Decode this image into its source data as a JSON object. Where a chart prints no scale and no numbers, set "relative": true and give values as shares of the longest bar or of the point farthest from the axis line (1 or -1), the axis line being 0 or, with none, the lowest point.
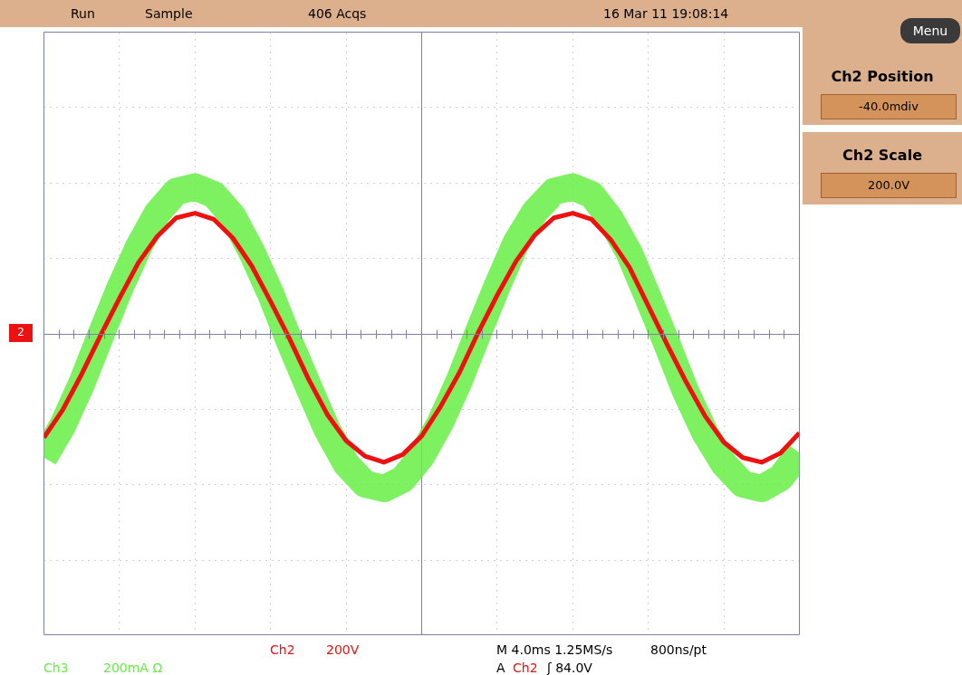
{
  "chart_data": {
    "type": "line",
    "relative": true,
    "grid": true,
    "line_style": "solid",
    "marker": "none",
    "categories": [
      null,
      null,
      null,
      null,
      null,
      null,
      null,
      null,
      null,
      null,
      null,
      null,
      null,
      null,
      null,
      null,
      null,
      null,
      null,
      null,
      null,
      null,
      null,
      null,
      null,
      null,
      null,
      null,
      null,
      null,
      null,
      null,
      null,
      null,
      null,
      null,
      null,
      null,
      null,
      null,
      null
    ],
    "series": [
      {
        "name": "Ch3",
        "color": "#66ee44",
        "values": [
          -0.8,
          -0.59,
          -0.32,
          -0.01,
          0.29,
          0.56,
          0.78,
          0.92,
          0.95,
          0.9,
          0.76,
          0.53,
          0.26,
          -0.05,
          -0.34,
          -0.62,
          -0.84,
          -0.97,
          -1.0,
          -0.94,
          -0.79,
          -0.57,
          -0.3,
          0.01,
          0.31,
          0.59,
          0.79,
          0.92,
          0.95,
          0.9,
          0.74,
          0.52,
          0.23,
          -0.07,
          -0.38,
          -0.64,
          -0.84,
          -0.97,
          -1.0,
          -0.93,
          -0.77
        ]
      },
      {
        "name": "Ch2",
        "color": "#ee1111",
        "values": [
          -0.67,
          -0.49,
          -0.26,
          -0.01,
          0.23,
          0.46,
          0.63,
          0.75,
          0.78,
          0.74,
          0.62,
          0.44,
          0.21,
          -0.03,
          -0.29,
          -0.52,
          -0.69,
          -0.79,
          -0.83,
          -0.78,
          -0.66,
          -0.47,
          -0.25,
          0.01,
          0.25,
          0.47,
          0.64,
          0.75,
          0.78,
          0.74,
          0.61,
          0.43,
          0.18,
          -0.07,
          -0.31,
          -0.53,
          -0.7,
          -0.8,
          -0.83,
          -0.77,
          -0.64
        ]
      }
    ],
    "annotations": [
      "Run",
      "Sample",
      "406 Acqs",
      "16 Mar 11 19:08:14",
      "Menu",
      "Ch2 Position",
      "-40.0mdiv",
      "Ch2 Scale",
      "200.0V",
      "200V",
      "200mA  Ω",
      "M 4.0ms 1.25MS/s",
      "800ns/pt",
      "A",
      "ʃ 84.0V",
      "2"
    ]
  }
}
